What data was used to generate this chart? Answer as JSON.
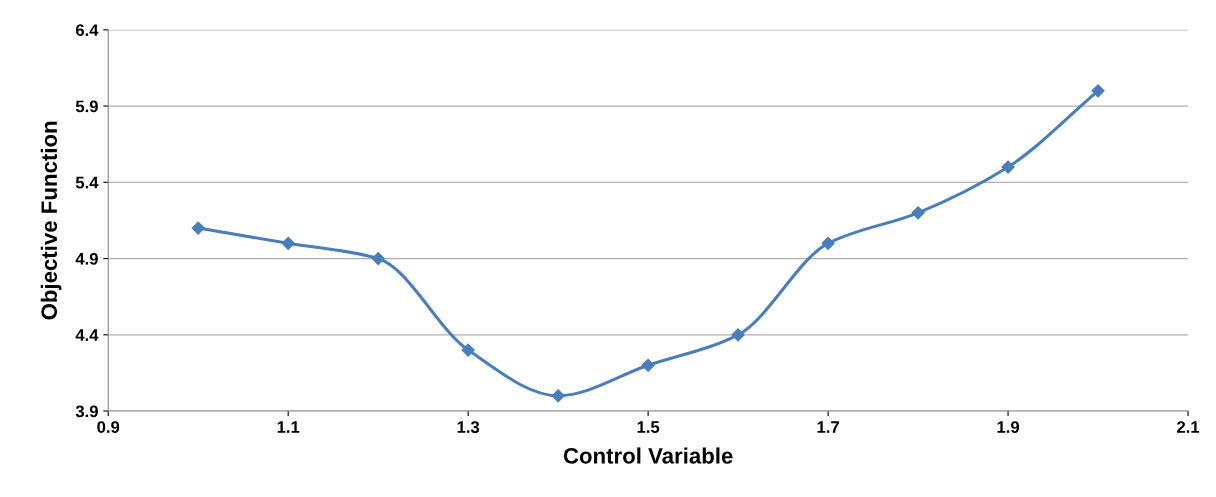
{
  "chart_data": {
    "type": "line",
    "xlabel": "Control Variable",
    "ylabel": "Objective Function",
    "x": [
      1.0,
      1.1,
      1.2,
      1.3,
      1.4,
      1.5,
      1.6,
      1.7,
      1.8,
      1.9,
      2.0
    ],
    "series": [
      {
        "color": "#4a7ebb",
        "values": [
          5.1,
          5.0,
          4.9,
          4.3,
          4.0,
          4.2,
          4.4,
          5.0,
          5.2,
          5.5,
          6.0
        ]
      }
    ],
    "xlim": [
      0.9,
      2.1
    ],
    "xticks": [
      0.9,
      1.1,
      1.3,
      1.5,
      1.7,
      1.9,
      2.1
    ],
    "ylim": [
      3.9,
      6.4
    ],
    "yticks": [
      3.9,
      4.4,
      4.9,
      5.4,
      5.9,
      6.4
    ],
    "grid": "y",
    "marker": "diamond",
    "line_style": "solid"
  }
}
